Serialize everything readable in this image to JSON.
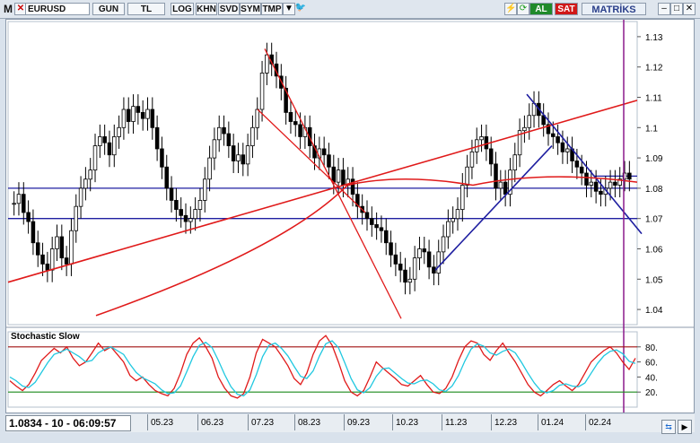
{
  "toolbar": {
    "menu_label": "M",
    "symbol": "EURUSD",
    "buttons": [
      "GUN",
      "TL",
      "LOG",
      "KHN",
      "SVD",
      "SYM",
      "TMP"
    ],
    "buy_label": "AL",
    "sell_label": "SAT",
    "brand": "MATRİKS",
    "buy_color": "#1f8a2a",
    "sell_color": "#d01818",
    "brand_color": "#2a3f8a"
  },
  "status": {
    "value_text": "1.0834 - 10 - 06:09:57"
  },
  "chart_data": [
    {
      "type": "candlestick",
      "symbol": "EURUSD",
      "period": "weekly",
      "yticks": [
        "1.13",
        "1.12",
        "1.11",
        "1.1",
        "1.09",
        "1.08",
        "1.07",
        "1.06",
        "1.05",
        "1.04"
      ],
      "ylim": [
        1.035,
        1.135
      ],
      "xticks": [
        "05.23",
        "06.23",
        "07.23",
        "08.23",
        "09.23",
        "10.23",
        "11.23",
        "12.23",
        "01.24",
        "02.24"
      ],
      "close_series": [
        1.075,
        1.078,
        1.072,
        1.069,
        1.062,
        1.058,
        1.055,
        1.053,
        1.06,
        1.064,
        1.057,
        1.055,
        1.066,
        1.074,
        1.08,
        1.083,
        1.086,
        1.094,
        1.097,
        1.095,
        1.091,
        1.097,
        1.1,
        1.106,
        1.102,
        1.107,
        1.105,
        1.103,
        1.106,
        1.1,
        1.093,
        1.087,
        1.08,
        1.076,
        1.073,
        1.071,
        1.069,
        1.07,
        1.073,
        1.076,
        1.083,
        1.09,
        1.096,
        1.1,
        1.098,
        1.094,
        1.089,
        1.091,
        1.088,
        1.094,
        1.1,
        1.106,
        1.118,
        1.124,
        1.121,
        1.117,
        1.113,
        1.105,
        1.102,
        1.101,
        1.097,
        1.1,
        1.094,
        1.09,
        1.093,
        1.091,
        1.087,
        1.082,
        1.086,
        1.081,
        1.083,
        1.078,
        1.074,
        1.072,
        1.07,
        1.068,
        1.067,
        1.066,
        1.062,
        1.058,
        1.055,
        1.053,
        1.049,
        1.05,
        1.057,
        1.06,
        1.059,
        1.054,
        1.052,
        1.059,
        1.064,
        1.069,
        1.07,
        1.073,
        1.081,
        1.087,
        1.092,
        1.096,
        1.097,
        1.093,
        1.088,
        1.08,
        1.082,
        1.078,
        1.086,
        1.091,
        1.099,
        1.1,
        1.104,
        1.108,
        1.104,
        1.101,
        1.098,
        1.097,
        1.095,
        1.092,
        1.093,
        1.089,
        1.087,
        1.085,
        1.081,
        1.082,
        1.079,
        1.078,
        1.08,
        1.082,
        1.081,
        1.083,
        1.085,
        1.083
      ]
    },
    {
      "type": "line",
      "title": "Stochastic Slow",
      "yticks": [
        "80.",
        "60.",
        "40.",
        "20."
      ],
      "ylim": [
        0,
        100
      ],
      "reference_lines": [
        80,
        20
      ],
      "series": [
        {
          "color": "#e01a1a",
          "values": [
            35,
            28,
            22,
            30,
            45,
            62,
            70,
            78,
            72,
            80,
            65,
            55,
            60,
            72,
            85,
            75,
            80,
            70,
            60,
            42,
            35,
            40,
            30,
            22,
            18,
            15,
            25,
            45,
            70,
            85,
            92,
            80,
            65,
            40,
            25,
            15,
            12,
            18,
            40,
            72,
            90,
            85,
            80,
            68,
            55,
            38,
            30,
            45,
            70,
            88,
            95,
            82,
            60,
            35,
            20,
            15,
            22,
            40,
            60,
            52,
            45,
            38,
            30,
            28,
            35,
            42,
            30,
            20,
            18,
            25,
            40,
            62,
            80,
            88,
            85,
            70,
            62,
            75,
            85,
            72,
            60,
            45,
            30,
            20,
            15,
            22,
            30,
            35,
            28,
            22,
            30,
            45,
            60,
            68,
            75,
            80,
            72,
            60,
            50,
            65
          ]
        },
        {
          "color": "#20c8e0",
          "values": [
            40,
            35,
            28,
            26,
            33,
            46,
            59,
            70,
            73,
            77,
            72,
            67,
            60,
            62,
            72,
            77,
            80,
            75,
            70,
            57,
            46,
            39,
            35,
            31,
            23,
            18,
            19,
            28,
            47,
            67,
            82,
            86,
            79,
            62,
            43,
            27,
            17,
            15,
            23,
            43,
            67,
            82,
            85,
            78,
            68,
            54,
            41,
            38,
            48,
            68,
            84,
            88,
            79,
            59,
            38,
            23,
            19,
            26,
            41,
            51,
            52,
            45,
            38,
            32,
            31,
            35,
            36,
            31,
            23,
            21,
            28,
            42,
            61,
            77,
            84,
            81,
            72,
            69,
            74,
            77,
            72,
            59,
            45,
            32,
            22,
            19,
            22,
            29,
            31,
            28,
            27,
            32,
            45,
            58,
            68,
            74,
            76,
            71,
            61,
            58
          ]
        }
      ]
    }
  ]
}
